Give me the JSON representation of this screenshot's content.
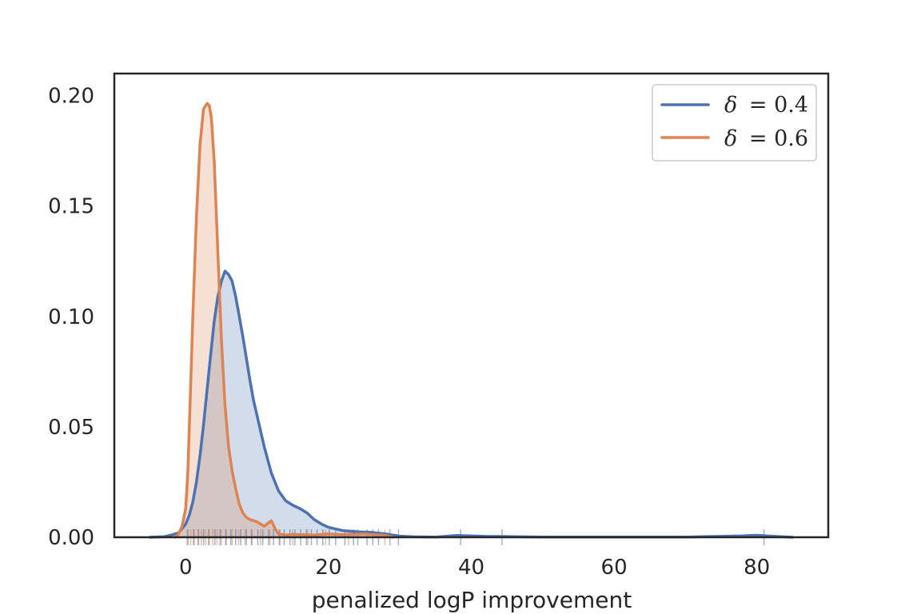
{
  "chart_data": {
    "type": "area",
    "xlabel": "penalized logP improvement",
    "ylabel": "",
    "xlim": [
      -10,
      90
    ],
    "ylim": [
      0,
      0.21
    ],
    "xticks": [
      0,
      20,
      40,
      60,
      80
    ],
    "yticks": [
      0.0,
      0.05,
      0.1,
      0.15,
      0.2
    ],
    "xtick_labels": [
      "0",
      "20",
      "40",
      "60",
      "80"
    ],
    "ytick_labels": [
      "0.00",
      "0.05",
      "0.10",
      "0.15",
      "0.20"
    ],
    "grid": false,
    "legend_position": "top-right",
    "colors": {
      "delta04": "#4c72b0",
      "delta06": "#dd8452",
      "axes": "#262626"
    },
    "series": [
      {
        "name": "δ = 0.4",
        "legend_symbol": "δ",
        "legend_value": "= 0.4",
        "x": [
          -5,
          -3,
          -2,
          -1,
          0,
          0.5,
          1,
          1.5,
          2,
          2.5,
          3,
          3.5,
          4,
          4.5,
          5,
          5.5,
          6,
          6.5,
          7,
          7.5,
          8,
          8.5,
          9,
          9.5,
          10,
          11,
          12,
          13,
          14,
          15,
          16,
          17,
          18,
          19,
          20,
          22,
          24,
          26,
          28,
          30,
          32,
          35,
          38,
          42,
          46,
          50,
          60,
          70,
          78,
          80,
          82,
          85
        ],
        "y": [
          0,
          0.0003,
          0.001,
          0.002,
          0.006,
          0.01,
          0.016,
          0.025,
          0.037,
          0.051,
          0.067,
          0.083,
          0.098,
          0.109,
          0.116,
          0.1205,
          0.119,
          0.116,
          0.109,
          0.1,
          0.091,
          0.081,
          0.071,
          0.062,
          0.055,
          0.041,
          0.029,
          0.021,
          0.0165,
          0.0145,
          0.013,
          0.011,
          0.008,
          0.006,
          0.0045,
          0.003,
          0.0025,
          0.0022,
          0.0015,
          0.0005,
          0.0002,
          0.0001,
          0.0008,
          0.0004,
          0.0003,
          0.0001,
          0.0001,
          0.0001,
          0.0006,
          0.0009,
          0.0005,
          0
        ]
      },
      {
        "name": "δ = 0.6",
        "legend_symbol": "δ",
        "legend_value": "= 0.6",
        "x": [
          -1.5,
          -1,
          -0.5,
          0,
          0.3,
          0.6,
          1,
          1.5,
          2,
          2.5,
          3,
          3.3,
          3.6,
          4,
          4.5,
          5,
          5.5,
          6,
          6.5,
          7,
          7.5,
          8,
          8.5,
          9,
          10,
          11,
          12,
          12.5,
          13,
          14,
          15,
          16,
          17,
          18,
          20,
          22,
          25,
          28,
          29
        ],
        "y": [
          0,
          0.0015,
          0.005,
          0.013,
          0.03,
          0.06,
          0.1,
          0.145,
          0.178,
          0.194,
          0.1965,
          0.1955,
          0.19,
          0.17,
          0.129,
          0.09,
          0.06,
          0.041,
          0.03,
          0.022,
          0.015,
          0.011,
          0.009,
          0.008,
          0.007,
          0.005,
          0.0075,
          0.004,
          0.0015,
          0.001,
          0.0013,
          0.0012,
          0.0011,
          0.001,
          0.0015,
          0.0012,
          0.0015,
          0.0008,
          0
        ]
      }
    ],
    "rug": {
      "delta04": [
        0.3,
        1.1,
        1.8,
        2.5,
        3.2,
        4.1,
        4.8,
        5.6,
        6.3,
        7.0,
        7.7,
        8.5,
        9.2,
        10.1,
        10.8,
        11.6,
        12.3,
        13.1,
        13.8,
        14.6,
        15.3,
        16.1,
        16.9,
        17.6,
        18.4,
        19.2,
        20.1,
        21.0,
        22.3,
        23.5,
        24.1,
        25.4,
        26.2,
        27.0,
        28.6,
        29.8,
        38.5,
        44.3,
        81.0
      ],
      "delta06": [
        0.2,
        0.7,
        1.2,
        1.7,
        2.2,
        2.8,
        3.3,
        3.8,
        4.4,
        5.0,
        5.7,
        6.5,
        7.4,
        8.3,
        9.3,
        10.5,
        11.8,
        13.2,
        15.0,
        17.1,
        19.6,
        22.8,
        27.9
      ]
    }
  }
}
